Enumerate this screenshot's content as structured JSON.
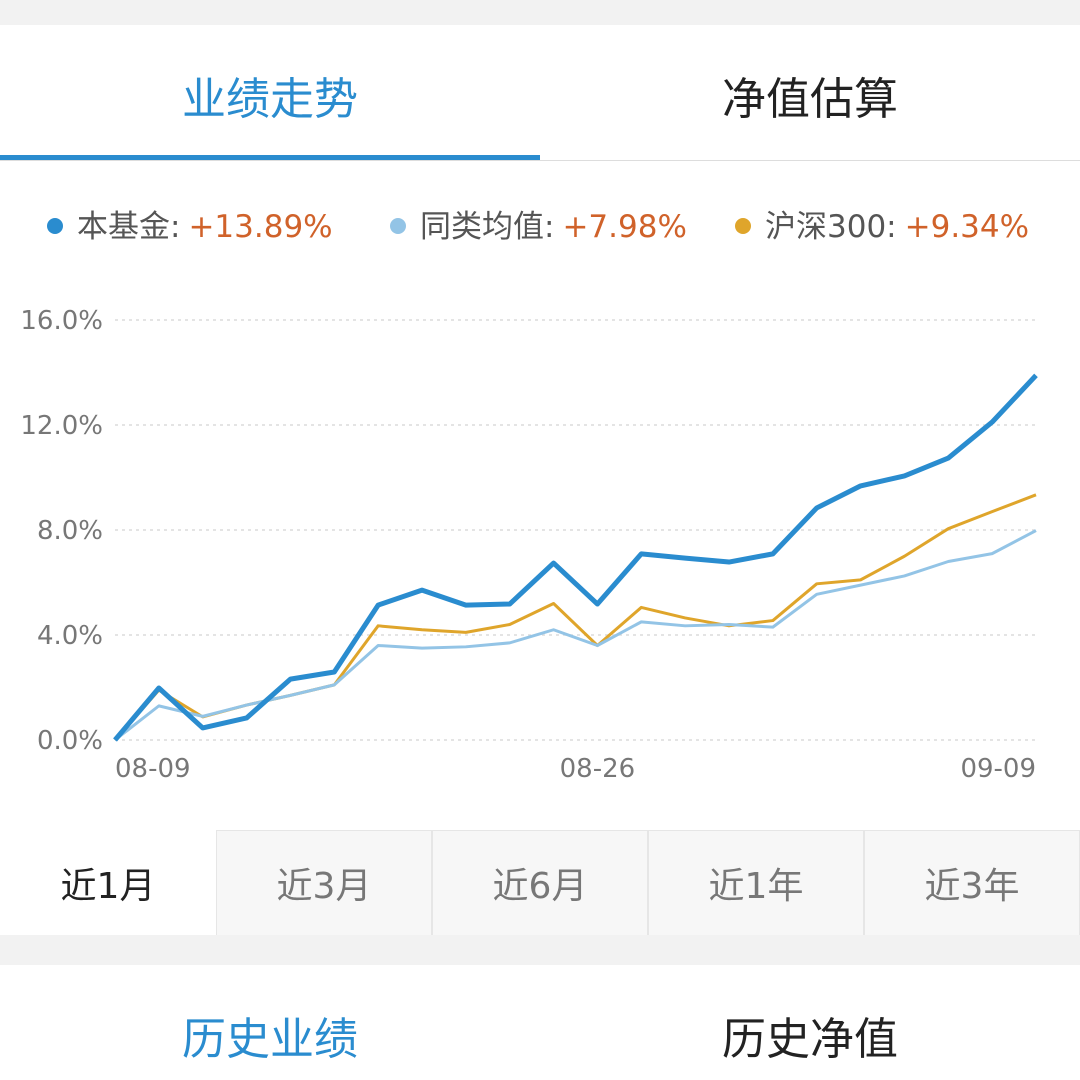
{
  "top_tabs": [
    {
      "label": "业绩走势",
      "active": true
    },
    {
      "label": "净值估算",
      "active": false
    }
  ],
  "chart_data": {
    "type": "line",
    "categories": [
      "08-09",
      null,
      null,
      null,
      null,
      null,
      null,
      null,
      null,
      null,
      null,
      "08-26",
      null,
      null,
      null,
      null,
      null,
      null,
      null,
      null,
      null,
      "09-09"
    ],
    "series": [
      {
        "name": "本基金:",
        "color": "#2a8ccf",
        "width": 5,
        "total": 13.89,
        "total_label": "+13.89%",
        "values": [
          0,
          1.98,
          0.46,
          0.84,
          2.32,
          2.59,
          5.14,
          5.71,
          5.14,
          5.18,
          6.74,
          5.18,
          7.09,
          6.93,
          6.78,
          7.09,
          8.84,
          9.68,
          10.06,
          10.74,
          12.11,
          13.89
        ]
      },
      {
        "name": "同类均值:",
        "color": "#93c4e6",
        "width": 3,
        "total": 7.98,
        "total_label": "+7.98%",
        "values": [
          0,
          1.3,
          0.9,
          1.33,
          1.7,
          2.1,
          3.6,
          3.5,
          3.55,
          3.7,
          4.2,
          3.6,
          4.5,
          4.35,
          4.4,
          4.3,
          5.55,
          5.9,
          6.25,
          6.8,
          7.1,
          7.98
        ]
      },
      {
        "name": "沪深300:",
        "color": "#dfa52b",
        "width": 3,
        "total": 9.34,
        "total_label": "+9.34%",
        "values": [
          0,
          1.9,
          0.88,
          1.33,
          1.7,
          2.1,
          4.35,
          4.2,
          4.1,
          4.4,
          5.2,
          3.6,
          5.05,
          4.65,
          4.35,
          4.55,
          5.95,
          6.1,
          7.0,
          8.05,
          8.7,
          9.34
        ]
      }
    ],
    "ylim": [
      0,
      16
    ],
    "yticks": [
      {
        "value": 0,
        "label": "0.0%"
      },
      {
        "value": 4,
        "label": "4.0%"
      },
      {
        "value": 8,
        "label": "8.0%"
      },
      {
        "value": 12,
        "label": "12.0%"
      },
      {
        "value": 16,
        "label": "16.0%"
      }
    ],
    "grid": true
  },
  "periods": [
    {
      "label": "近1月",
      "active": true
    },
    {
      "label": "近3月",
      "active": false
    },
    {
      "label": "近6月",
      "active": false
    },
    {
      "label": "近1年",
      "active": false
    },
    {
      "label": "近3年",
      "active": false
    }
  ],
  "bottom_tabs": [
    {
      "label": "历史业绩",
      "active": true
    },
    {
      "label": "历史净值",
      "active": false
    }
  ]
}
